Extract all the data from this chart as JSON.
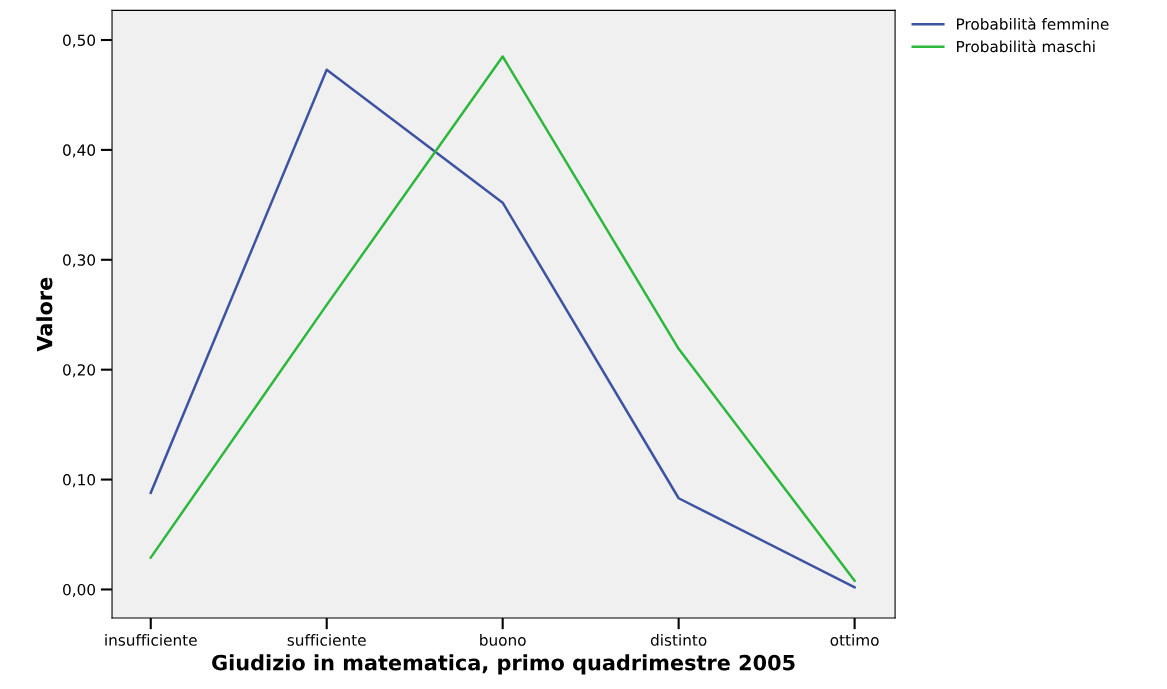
{
  "chart_data": {
    "type": "line",
    "xlabel": "Giudizio in matematica, primo quadrimestre 2005",
    "ylabel": "Valore",
    "categories": [
      "insufficiente",
      "sufficiente",
      "buono",
      "distinto",
      "ottimo"
    ],
    "series": [
      {
        "name": "Probabilità femmine",
        "color": "#3e54a3",
        "values": [
          0.088,
          0.473,
          0.352,
          0.083,
          0.002
        ]
      },
      {
        "name": "Probabilità maschi",
        "color": "#2db83d",
        "values": [
          0.029,
          0.259,
          0.485,
          0.219,
          0.008
        ]
      }
    ],
    "ylim": [
      -0.026,
      0.527
    ],
    "yticks": [
      {
        "value": 0,
        "label": "0,00"
      },
      {
        "value": 0.1,
        "label": "0,10"
      },
      {
        "value": 0.2,
        "label": "0,20"
      },
      {
        "value": 0.3,
        "label": "0,30"
      },
      {
        "value": 0.4,
        "label": "0,40"
      },
      {
        "value": 0.5,
        "label": "0,50"
      }
    ],
    "grid": false,
    "legend": "top right",
    "marker": "none",
    "line_style": "solid"
  }
}
